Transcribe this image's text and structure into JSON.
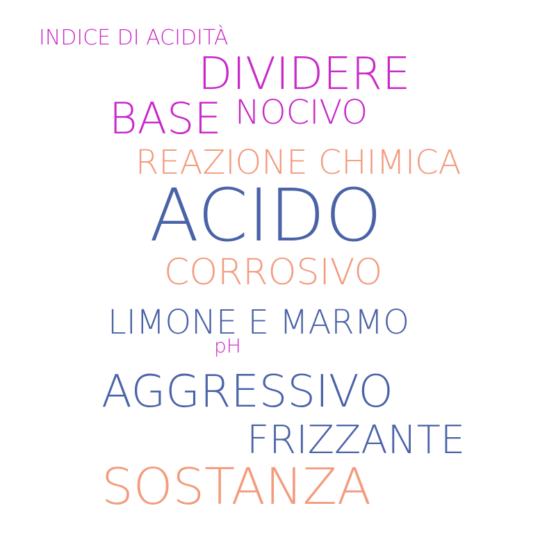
{
  "words": {
    "indice_di_acidita": "INDICE DI ACIDITÀ",
    "dividere": "DIVIDERE",
    "base": "BASE",
    "nocivo": "NOCIVO",
    "reazione_chimica": "REAZIONE CHIMICA",
    "acido": "ACIDO",
    "corrosivo": "CORROSIVO",
    "limone_e_marmo": "LIMONE E MARMO",
    "ph": "pH",
    "aggressivo": "AGGRESSIVO",
    "frizzante": "FRIZZANTE",
    "sostanza": "SOSTANZA"
  },
  "colors": {
    "magenta": "#c929c9",
    "salmon": "#f39b7d",
    "blue": "#4a63a8"
  }
}
